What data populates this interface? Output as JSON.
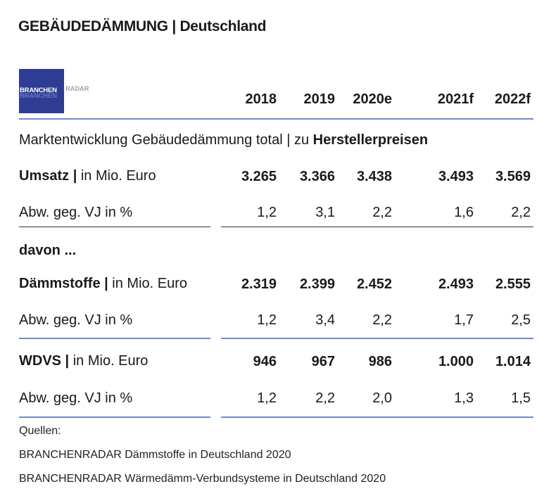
{
  "title": "GEBÄUDEDÄMMUNG | Deutschland",
  "logo": {
    "text_left": "BRANCHEN",
    "text_right": "RADAR",
    "background_color": "#2e3d93"
  },
  "columns": [
    "2018",
    "2019",
    "2020e",
    "2021f",
    "2022f"
  ],
  "section_title": {
    "normal": "Marktentwicklung Gebäudedämmung total | zu ",
    "bold": "Herstellerpreisen"
  },
  "rows": {
    "umsatz": {
      "label_bold": "Umsatz |",
      "label_normal": " in Mio. Euro",
      "values": [
        "3.265",
        "3.366",
        "3.438",
        "3.493",
        "3.569"
      ]
    },
    "umsatz_change": {
      "label": "Abw. geg. VJ in %",
      "values": [
        "1,2",
        "3,1",
        "2,2",
        "1,6",
        "2,2"
      ]
    },
    "davon": {
      "label": "davon ..."
    },
    "daemmstoffe": {
      "label_bold": "Dämmstoffe |",
      "label_normal": " in Mio. Euro",
      "values": [
        "2.319",
        "2.399",
        "2.452",
        "2.493",
        "2.555"
      ]
    },
    "daemmstoffe_change": {
      "label": "Abw. geg. VJ in %",
      "values": [
        "1,2",
        "3,4",
        "2,2",
        "1,7",
        "2,5"
      ]
    },
    "wdvs": {
      "label_bold": "WDVS |",
      "label_normal": " in Mio. Euro",
      "values": [
        "946",
        "967",
        "986",
        "1.000",
        "1.014"
      ]
    },
    "wdvs_change": {
      "label": "Abw. geg. VJ in %",
      "values": [
        "1,2",
        "2,2",
        "2,0",
        "1,3",
        "1,5"
      ]
    }
  },
  "sources": {
    "heading": "Quellen:",
    "items": [
      "BRANCHENRADAR Dämmstoffe in Deutschland 2020",
      "BRANCHENRADAR Wärmedämm-Verbundsysteme in Deutschland 2020"
    ]
  },
  "colors": {
    "accent_rule": "#6b8fcb",
    "text": "#1a1a1a"
  }
}
